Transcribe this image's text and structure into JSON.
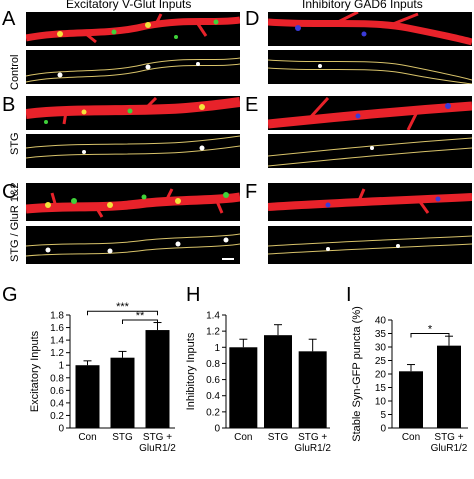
{
  "headers": {
    "excitatory": "Excitatory V-Glut Inputs",
    "inhibitory": "Inhibitory GAD6 Inputs"
  },
  "panel_letters": {
    "A": "A",
    "B": "B",
    "C": "C",
    "D": "D",
    "E": "E",
    "F": "F",
    "G": "G",
    "H": "H",
    "I": "I"
  },
  "row_labels": {
    "control": "Control",
    "stg": "STG",
    "stg_glur": "STG / GluR 1&2"
  },
  "chart_data": [
    {
      "panel": "G",
      "type": "bar",
      "categories": [
        "Con",
        "STG",
        "STG +\nGluR1/2"
      ],
      "values": [
        1.0,
        1.12,
        1.56
      ],
      "errors": [
        0.07,
        0.1,
        0.12
      ],
      "ylabel": "Excitatory Inputs",
      "ylim": [
        0,
        1.8
      ],
      "yticks": [
        0,
        0.2,
        0.4,
        0.6,
        0.8,
        1.0,
        1.2,
        1.4,
        1.6,
        1.8
      ],
      "yticklabels": [
        "0",
        "0.2",
        "0.4",
        "0.6",
        "0.8",
        "1",
        "1.2",
        "1.4",
        "1.6",
        "1.8"
      ],
      "significance": [
        {
          "from": 0,
          "to": 2,
          "label": "***",
          "level": 1.86
        },
        {
          "from": 1,
          "to": 2,
          "label": "**",
          "level": 1.72
        }
      ]
    },
    {
      "panel": "H",
      "type": "bar",
      "categories": [
        "Con",
        "STG",
        "STG +\nGluR1/2"
      ],
      "values": [
        1.0,
        1.15,
        0.95
      ],
      "errors": [
        0.1,
        0.13,
        0.15
      ],
      "ylabel": "Inhibitory Inputs",
      "ylim": [
        0,
        1.4
      ],
      "yticks": [
        0,
        0.2,
        0.4,
        0.6,
        0.8,
        1.0,
        1.2,
        1.4
      ],
      "yticklabels": [
        "0",
        "0.2",
        "0.4",
        "0.6",
        "0.8",
        "1",
        "1.2",
        "1.4"
      ],
      "significance": []
    },
    {
      "panel": "I",
      "type": "bar",
      "categories": [
        "Con",
        "STG +\nGluR1/2"
      ],
      "values": [
        21,
        30.5
      ],
      "errors": [
        2.5,
        3.5
      ],
      "ylabel": "Stable Syn-GFP puncta (%)",
      "ylim": [
        0,
        40
      ],
      "yticks": [
        0,
        5,
        10,
        15,
        20,
        25,
        30,
        35,
        40
      ],
      "yticklabels": [
        "0",
        "5",
        "10",
        "15",
        "20",
        "25",
        "30",
        "35",
        "40"
      ],
      "significance": [
        {
          "from": 0,
          "to": 1,
          "label": "*",
          "level": 35
        }
      ]
    }
  ],
  "colors": {
    "dendrite": "#e8222a",
    "excitatory_puncta": "#3fd23a",
    "inhibitory_puncta": "#3b3bd8",
    "overlap": "#f4e23a",
    "trace": "#d8c36a",
    "bar_fill": "#000000"
  }
}
